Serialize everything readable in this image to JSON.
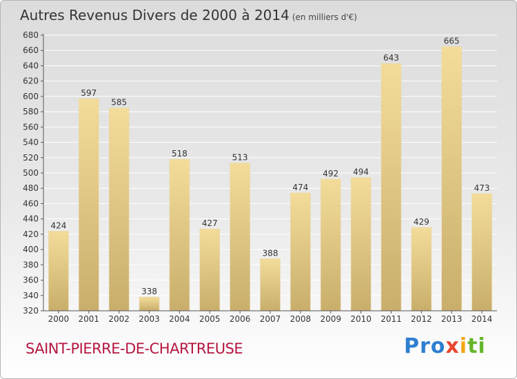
{
  "header": {
    "title": "Autres Revenus Divers de 2000 à 2014",
    "unit": "(en milliers d'€)"
  },
  "footer": {
    "city": "SAINT-PIERRE-DE-CHARTREUSE",
    "logo_letters": [
      "Pro",
      "x",
      "i",
      "ti"
    ]
  },
  "colors": {
    "bar_light": "#f3dc9a",
    "bar_dark": "#c9ae6b",
    "axis": "#555555",
    "grid": "#ffffff",
    "city": "#b5163f"
  },
  "chart_data": {
    "type": "bar",
    "title": "Autres Revenus Divers de 2000 à 2014",
    "subtitle": "(en milliers d'€)",
    "categories": [
      "2000",
      "2001",
      "2002",
      "2003",
      "2004",
      "2005",
      "2006",
      "2007",
      "2008",
      "2009",
      "2010",
      "2011",
      "2012",
      "2013",
      "2014"
    ],
    "values": [
      424,
      597,
      585,
      338,
      518,
      427,
      513,
      388,
      474,
      492,
      494,
      643,
      429,
      665,
      473
    ],
    "ylim": [
      320,
      680
    ],
    "yticks": [
      320,
      340,
      360,
      380,
      400,
      420,
      440,
      460,
      480,
      500,
      520,
      540,
      560,
      580,
      600,
      620,
      640,
      660,
      680
    ],
    "grid": true,
    "xlabel": "",
    "ylabel": ""
  }
}
